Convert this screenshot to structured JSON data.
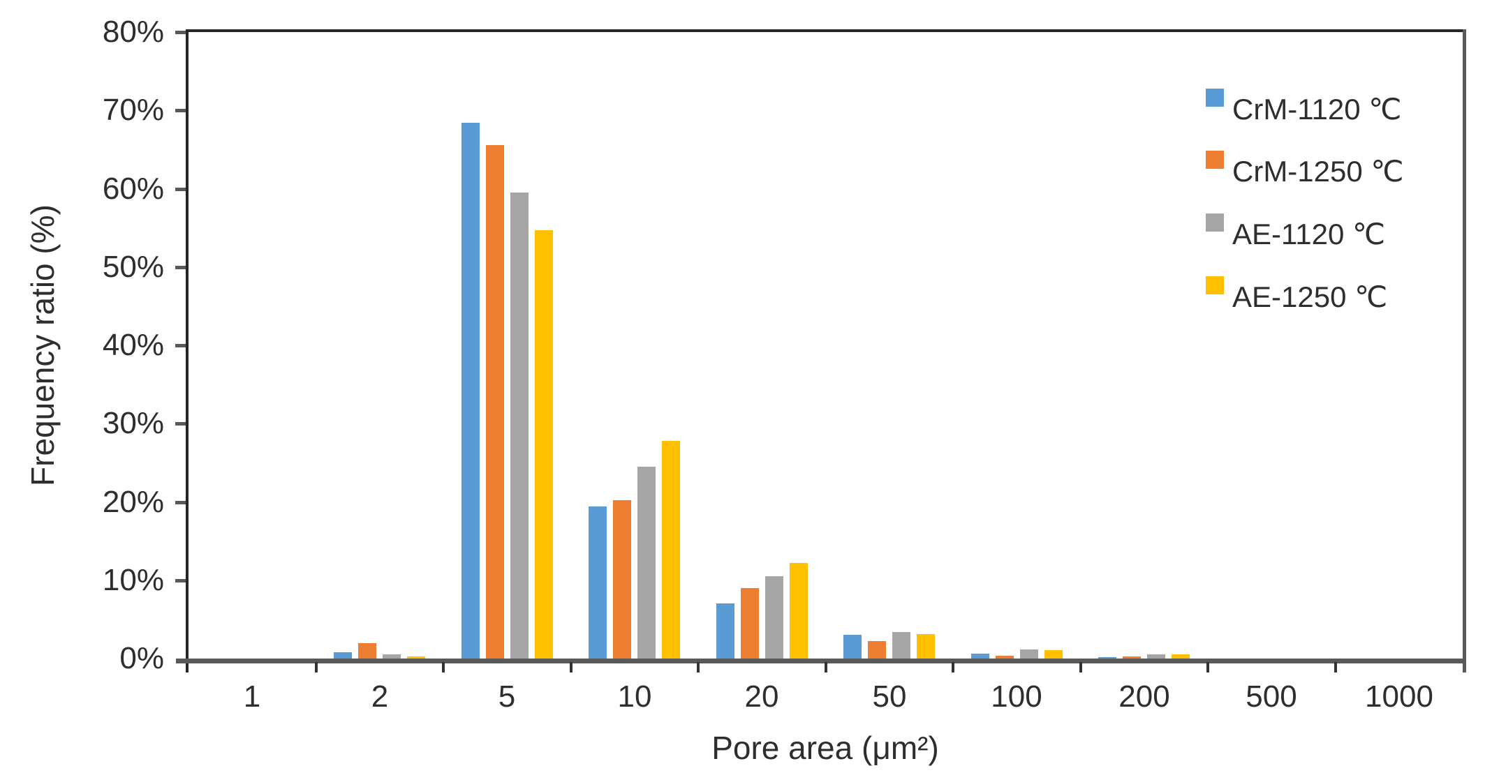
{
  "chart_data": {
    "type": "bar",
    "title": "",
    "xlabel": "Pore area (μm²)",
    "ylabel": "Frequency ratio (%)",
    "categories": [
      "1",
      "2",
      "5",
      "10",
      "20",
      "50",
      "100",
      "200",
      "500",
      "1000"
    ],
    "series": [
      {
        "name": "CrM-1120 ℃",
        "color": "#5B9BD5",
        "values": [
          0,
          0.8,
          68.4,
          19.4,
          7.0,
          3.0,
          0.6,
          0.2,
          0,
          0
        ]
      },
      {
        "name": "CrM-1250 ℃",
        "color": "#ED7D31",
        "values": [
          0,
          2.0,
          65.6,
          20.2,
          9.0,
          2.2,
          0.4,
          0.3,
          0,
          0
        ]
      },
      {
        "name": "AE-1120 ℃",
        "color": "#A5A5A5",
        "values": [
          0,
          0.5,
          59.5,
          24.5,
          10.5,
          3.4,
          1.2,
          0.5,
          0,
          0
        ]
      },
      {
        "name": "AE-1250 ℃",
        "color": "#FFC000",
        "values": [
          0,
          0.3,
          54.7,
          27.8,
          12.2,
          3.1,
          1.1,
          0.5,
          0,
          0
        ]
      }
    ],
    "ylim": [
      0,
      80
    ],
    "ytick_step": 10,
    "ytick_labels": [
      "0%",
      "10%",
      "20%",
      "30%",
      "40%",
      "50%",
      "60%",
      "70%",
      "80%"
    ],
    "grid": false,
    "legend_position": "top-right-inside",
    "axis_colors": {
      "frame_dark": "#262626",
      "axis_gray": "#595959"
    }
  }
}
